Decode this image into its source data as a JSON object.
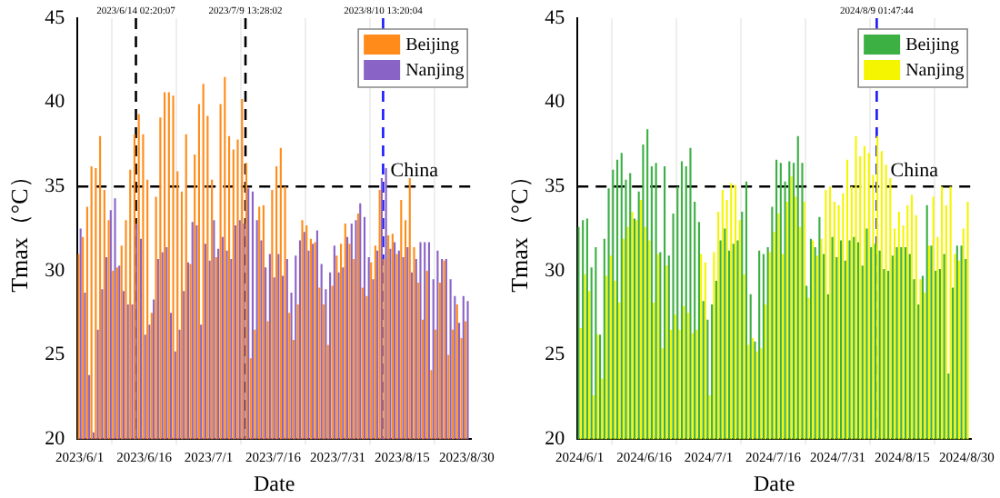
{
  "chart_data": [
    {
      "type": "bar",
      "xlabel": "Date",
      "ylabel": "Tmax（°C）",
      "x": [
        "2023-06-01",
        "2023-06-02",
        "2023-06-03",
        "2023-06-04",
        "2023-06-05",
        "2023-06-06",
        "2023-06-07",
        "2023-06-08",
        "2023-06-09",
        "2023-06-10",
        "2023-06-11",
        "2023-06-12",
        "2023-06-13",
        "2023-06-14",
        "2023-06-15",
        "2023-06-16",
        "2023-06-17",
        "2023-06-18",
        "2023-06-19",
        "2023-06-20",
        "2023-06-21",
        "2023-06-22",
        "2023-06-23",
        "2023-06-24",
        "2023-06-25",
        "2023-06-26",
        "2023-06-27",
        "2023-06-28",
        "2023-06-29",
        "2023-06-30",
        "2023-07-01",
        "2023-07-02",
        "2023-07-03",
        "2023-07-04",
        "2023-07-05",
        "2023-07-06",
        "2023-07-07",
        "2023-07-08",
        "2023-07-09",
        "2023-07-10",
        "2023-07-11",
        "2023-07-12",
        "2023-07-13",
        "2023-07-14",
        "2023-07-15",
        "2023-07-16",
        "2023-07-17",
        "2023-07-18",
        "2023-07-19",
        "2023-07-20",
        "2023-07-21",
        "2023-07-22",
        "2023-07-23",
        "2023-07-24",
        "2023-07-25",
        "2023-07-26",
        "2023-07-27",
        "2023-07-28",
        "2023-07-29",
        "2023-07-30",
        "2023-07-31",
        "2023-08-01",
        "2023-08-02",
        "2023-08-03",
        "2023-08-04",
        "2023-08-05",
        "2023-08-06",
        "2023-08-07",
        "2023-08-08",
        "2023-08-09",
        "2023-08-10",
        "2023-08-11",
        "2023-08-12",
        "2023-08-13",
        "2023-08-14",
        "2023-08-15",
        "2023-08-16",
        "2023-08-17",
        "2023-08-18",
        "2023-08-19",
        "2023-08-20",
        "2023-08-21",
        "2023-08-22",
        "2023-08-23",
        "2023-08-24",
        "2023-08-25",
        "2023-08-26",
        "2023-08-27",
        "2023-08-28",
        "2023-08-29",
        "2023-08-30"
      ],
      "series": [
        {
          "name": "Beijing",
          "color": "#ff8c1a",
          "values": [
            31,
            32,
            33.8,
            36.2,
            36.1,
            38,
            34.8,
            33,
            30,
            30.2,
            31.5,
            33,
            36,
            38.1,
            39.3,
            38.1,
            35.4,
            27.5,
            34.4,
            39.1,
            40.6,
            40.6,
            40.4,
            35.9,
            34.7,
            38.1,
            30.4,
            36.9,
            39.9,
            41.1,
            39.2,
            35.4,
            30.8,
            39.9,
            41.5,
            38,
            37.2,
            37.8,
            40.2,
            36.4,
            24.8,
            26.5,
            33.8,
            33.9,
            27,
            34.8,
            36.2,
            37.3,
            35,
            27.5,
            25.9,
            28,
            33,
            32.7,
            31.9,
            31.7,
            29,
            28,
            25.6,
            29.1,
            30.9,
            31.6,
            32.8,
            31.6,
            30.7,
            33.4,
            29,
            28.5,
            30.5,
            31.5,
            34.8,
            30.7,
            32.1,
            32.2,
            31,
            34.2,
            33,
            35.5,
            31.4,
            29.3,
            27.1,
            30,
            24.1,
            26.5,
            29.3,
            30.6,
            25,
            26.5,
            28,
            26,
            27
          ]
        },
        {
          "name": "Nanjing",
          "color": "#8a63c7",
          "values": [
            32.5,
            28.7,
            23.8,
            20.4,
            26.5,
            28.9,
            30.8,
            33.6,
            34.3,
            30.3,
            28.8,
            28,
            28,
            32.8,
            31.9,
            26.2,
            26.8,
            28.3,
            30.7,
            31.1,
            31.4,
            27.5,
            25.2,
            26.5,
            28.8,
            30.5,
            32.9,
            32.7,
            26.8,
            31.6,
            30.6,
            33,
            31.3,
            32,
            31.2,
            30.7,
            32.7,
            33,
            32.8,
            34.9,
            34.7,
            33,
            31.8,
            30.2,
            31,
            29.6,
            31,
            29.7,
            30.7,
            28.7,
            30.9,
            31.8,
            32.3,
            31.2,
            31.6,
            32.4,
            30.4,
            28.9,
            29.9,
            31.5,
            29.9,
            30.2,
            32,
            32.8,
            33,
            34,
            33.2,
            30.8,
            29.5,
            31.2,
            35.5,
            36.1,
            31.3,
            31.7,
            31.2,
            30.8,
            31.4,
            29.9,
            30.7,
            31.7,
            31.7,
            31.7,
            29.5,
            31.2,
            30.7,
            30.7,
            29.5,
            28.5,
            26.9,
            28.5,
            28.2
          ]
        }
      ],
      "xlim": [
        "2023-05-31T12:00",
        "2023-08-31T00:00"
      ],
      "xticks": [
        {
          "value": "2023-06-01",
          "label": "2023/6/1"
        },
        {
          "value": "2023-06-16",
          "label": "2023/6/16"
        },
        {
          "value": "2023-07-01",
          "label": "2023/7/1"
        },
        {
          "value": "2023-07-16",
          "label": "2023/7/16"
        },
        {
          "value": "2023-07-31",
          "label": "2023/7/31"
        },
        {
          "value": "2023-08-15",
          "label": "2023/8/15"
        },
        {
          "value": "2023-08-30",
          "label": "2023/8/30"
        }
      ],
      "ylim": [
        20,
        45
      ],
      "yticks": [
        20,
        25,
        30,
        35,
        40,
        45
      ],
      "ref_lines": [
        {
          "axis": "y",
          "value": 35,
          "label": "China",
          "color": "#000000",
          "line_style": "dashed"
        },
        {
          "axis": "x",
          "value": "2023-06-14T02:20",
          "label": "2023/6/14 02:20:07",
          "color": "#000000",
          "line_style": "dashed"
        },
        {
          "axis": "x",
          "value": "2023-07-09T13:28",
          "label": "2023/7/9 13:28:02",
          "color": "#000000",
          "line_style": "dashed"
        },
        {
          "axis": "x",
          "value": "2023-08-10T13:20",
          "label": "2023/8/10 13:20:04",
          "color": "#1a1aff",
          "line_style": "dashed"
        }
      ],
      "legend": "top right",
      "grid": "x"
    },
    {
      "type": "bar",
      "xlabel": "Date",
      "ylabel": "Tmax（°C）",
      "x": [
        "2024-06-01",
        "2024-06-02",
        "2024-06-03",
        "2024-06-04",
        "2024-06-05",
        "2024-06-06",
        "2024-06-07",
        "2024-06-08",
        "2024-06-09",
        "2024-06-10",
        "2024-06-11",
        "2024-06-12",
        "2024-06-13",
        "2024-06-14",
        "2024-06-15",
        "2024-06-16",
        "2024-06-17",
        "2024-06-18",
        "2024-06-19",
        "2024-06-20",
        "2024-06-21",
        "2024-06-22",
        "2024-06-23",
        "2024-06-24",
        "2024-06-25",
        "2024-06-26",
        "2024-06-27",
        "2024-06-28",
        "2024-06-29",
        "2024-06-30",
        "2024-07-01",
        "2024-07-02",
        "2024-07-03",
        "2024-07-04",
        "2024-07-05",
        "2024-07-06",
        "2024-07-07",
        "2024-07-08",
        "2024-07-09",
        "2024-07-10",
        "2024-07-11",
        "2024-07-12",
        "2024-07-13",
        "2024-07-14",
        "2024-07-15",
        "2024-07-16",
        "2024-07-17",
        "2024-07-18",
        "2024-07-19",
        "2024-07-20",
        "2024-07-21",
        "2024-07-22",
        "2024-07-23",
        "2024-07-24",
        "2024-07-25",
        "2024-07-26",
        "2024-07-27",
        "2024-07-28",
        "2024-07-29",
        "2024-07-30",
        "2024-07-31",
        "2024-08-01",
        "2024-08-02",
        "2024-08-03",
        "2024-08-04",
        "2024-08-05",
        "2024-08-06",
        "2024-08-07",
        "2024-08-08",
        "2024-08-09",
        "2024-08-10",
        "2024-08-11",
        "2024-08-12",
        "2024-08-13",
        "2024-08-14",
        "2024-08-15",
        "2024-08-16",
        "2024-08-17",
        "2024-08-18",
        "2024-08-19",
        "2024-08-20",
        "2024-08-21",
        "2024-08-22",
        "2024-08-23",
        "2024-08-24",
        "2024-08-25",
        "2024-08-26",
        "2024-08-27",
        "2024-08-28",
        "2024-08-29",
        "2024-08-30"
      ],
      "series": [
        {
          "name": "Beijing",
          "color": "#3cb043",
          "values": [
            32.6,
            33,
            33.1,
            30.2,
            31.4,
            26.2,
            31.9,
            34.9,
            36,
            36.6,
            37,
            35.4,
            35.8,
            33.1,
            34.7,
            37.5,
            38.4,
            36.2,
            36.4,
            31.1,
            36.2,
            30.9,
            33.4,
            35,
            36.5,
            36.2,
            37.3,
            34.1,
            32.9,
            28.2,
            27.1,
            28,
            29.4,
            31.8,
            32.5,
            31.2,
            31.6,
            31.8,
            33.5,
            35.3,
            28.6,
            25.8,
            31.2,
            31,
            31.4,
            33.8,
            36.6,
            36.4,
            35.3,
            36.5,
            36.4,
            38,
            36.4,
            29.1,
            31.9,
            31.4,
            33.2,
            31,
            28.6,
            32,
            30.8,
            31.8,
            30.6,
            31.8,
            32,
            31.7,
            30.3,
            32.5,
            31.4,
            31.6,
            31.2,
            30.1,
            30,
            30.9,
            31.4,
            31.4,
            31.4,
            31,
            29.5,
            28,
            29.7,
            33.9,
            31.5,
            30,
            30.1,
            31,
            23.9,
            29,
            31.5,
            31.5,
            30.7
          ]
        },
        {
          "name": "Nanjing",
          "color": "#f5f500",
          "values": [
            26.6,
            29.8,
            28.8,
            22.6,
            26.2,
            23.6,
            29.7,
            30.9,
            29.4,
            28.1,
            31.9,
            32.6,
            33.5,
            33,
            34.2,
            32.6,
            31.8,
            28.1,
            31,
            25.4,
            30.3,
            26.5,
            27.4,
            26.5,
            27.9,
            27.5,
            26.3,
            26.5,
            31,
            30.5,
            22.6,
            31.1,
            33.5,
            34.8,
            34.2,
            35.2,
            35.1,
            33,
            29.8,
            25.6,
            26,
            25.2,
            25.4,
            28,
            31.1,
            32.3,
            33.4,
            31,
            34.1,
            35.6,
            34.4,
            32.6,
            34.1,
            28.4,
            31.8,
            30.9,
            31.9,
            34.8,
            35,
            34.1,
            33.9,
            34.6,
            36.6,
            35,
            38,
            36.8,
            37.4,
            37,
            35.7,
            38,
            37.1,
            36.3,
            35.5,
            32.5,
            33.5,
            32.7,
            33.9,
            34.5,
            33.3,
            29.5,
            28.7,
            31.5,
            34.4,
            32,
            35,
            33.9,
            35,
            31,
            30.6,
            32.5,
            34.1
          ]
        }
      ],
      "xlim": [
        "2024-05-31T12:00",
        "2024-08-31T00:00"
      ],
      "xticks": [
        {
          "value": "2024-06-01",
          "label": "2024/6/1"
        },
        {
          "value": "2024-06-16",
          "label": "2024/6/16"
        },
        {
          "value": "2024-07-01",
          "label": "2024/7/1"
        },
        {
          "value": "2024-07-16",
          "label": "2024/7/16"
        },
        {
          "value": "2024-07-31",
          "label": "2024/7/31"
        },
        {
          "value": "2024-08-15",
          "label": "2024/8/15"
        },
        {
          "value": "2024-08-30",
          "label": "2024/8/30"
        }
      ],
      "ylim": [
        20,
        45
      ],
      "yticks": [
        20,
        25,
        30,
        35,
        40,
        45
      ],
      "ref_lines": [
        {
          "axis": "y",
          "value": 35,
          "label": "China",
          "color": "#000000",
          "line_style": "dashed"
        },
        {
          "axis": "x",
          "value": "2024-08-09T01:47",
          "label": "2024/8/9 01:47:44",
          "color": "#1a1aff",
          "line_style": "dashed"
        }
      ],
      "legend": "top right",
      "grid": "x"
    }
  ]
}
